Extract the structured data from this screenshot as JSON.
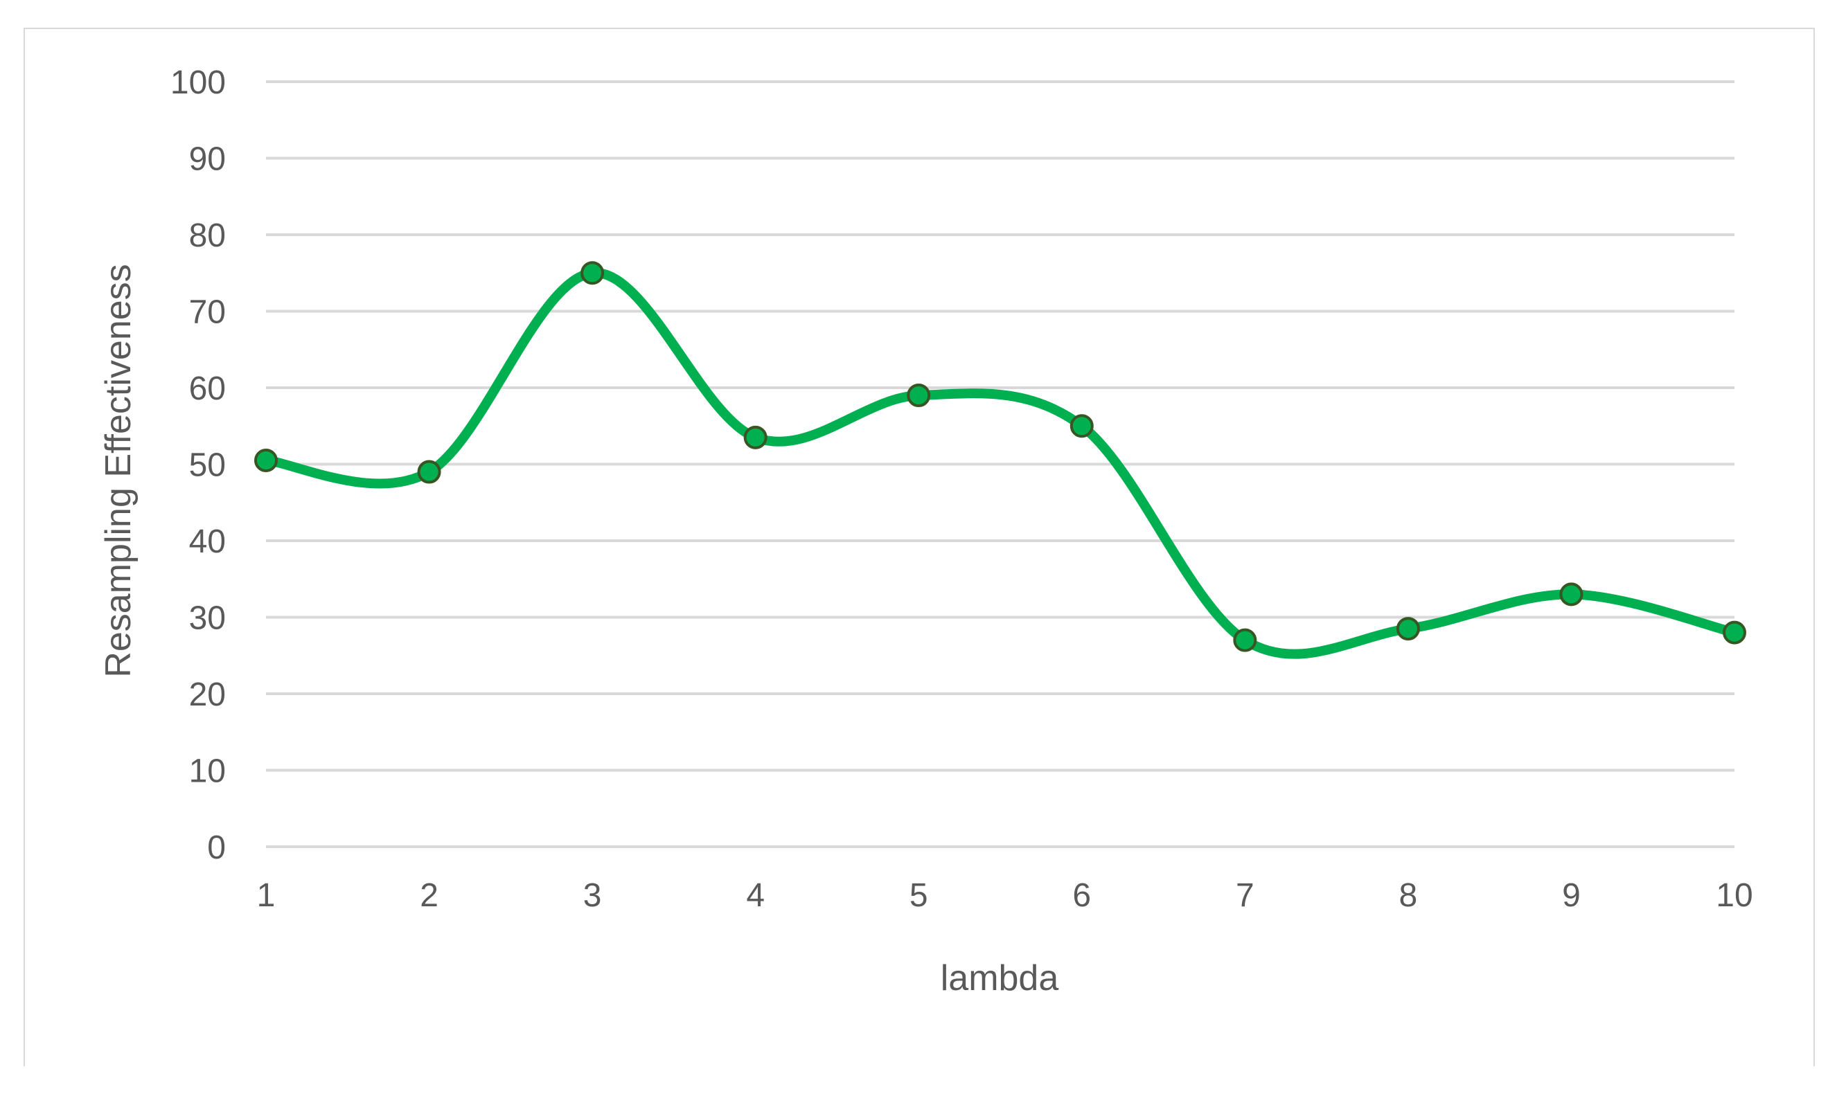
{
  "chart_data": {
    "type": "line",
    "title": "",
    "xlabel": "lambda",
    "ylabel": "Resampling Effectiveness",
    "x": [
      1,
      2,
      3,
      4,
      5,
      6,
      7,
      8,
      9,
      10
    ],
    "categories": [
      "1",
      "2",
      "3",
      "4",
      "5",
      "6",
      "7",
      "8",
      "9",
      "10"
    ],
    "series": [
      {
        "values": [
          50.5,
          49,
          75,
          53.5,
          59,
          55,
          27,
          28.5,
          33,
          28
        ],
        "color": "#00b050",
        "marker_edge_color": "#375623",
        "smooth": true
      }
    ],
    "ylim": [
      0,
      100
    ],
    "yticks": [
      0,
      10,
      20,
      30,
      40,
      50,
      60,
      70,
      80,
      90,
      100
    ],
    "ytick_labels": [
      "0",
      "10",
      "20",
      "30",
      "40",
      "50",
      "60",
      "70",
      "80",
      "90",
      "100"
    ],
    "grid": "horizontal",
    "legend": "none"
  }
}
